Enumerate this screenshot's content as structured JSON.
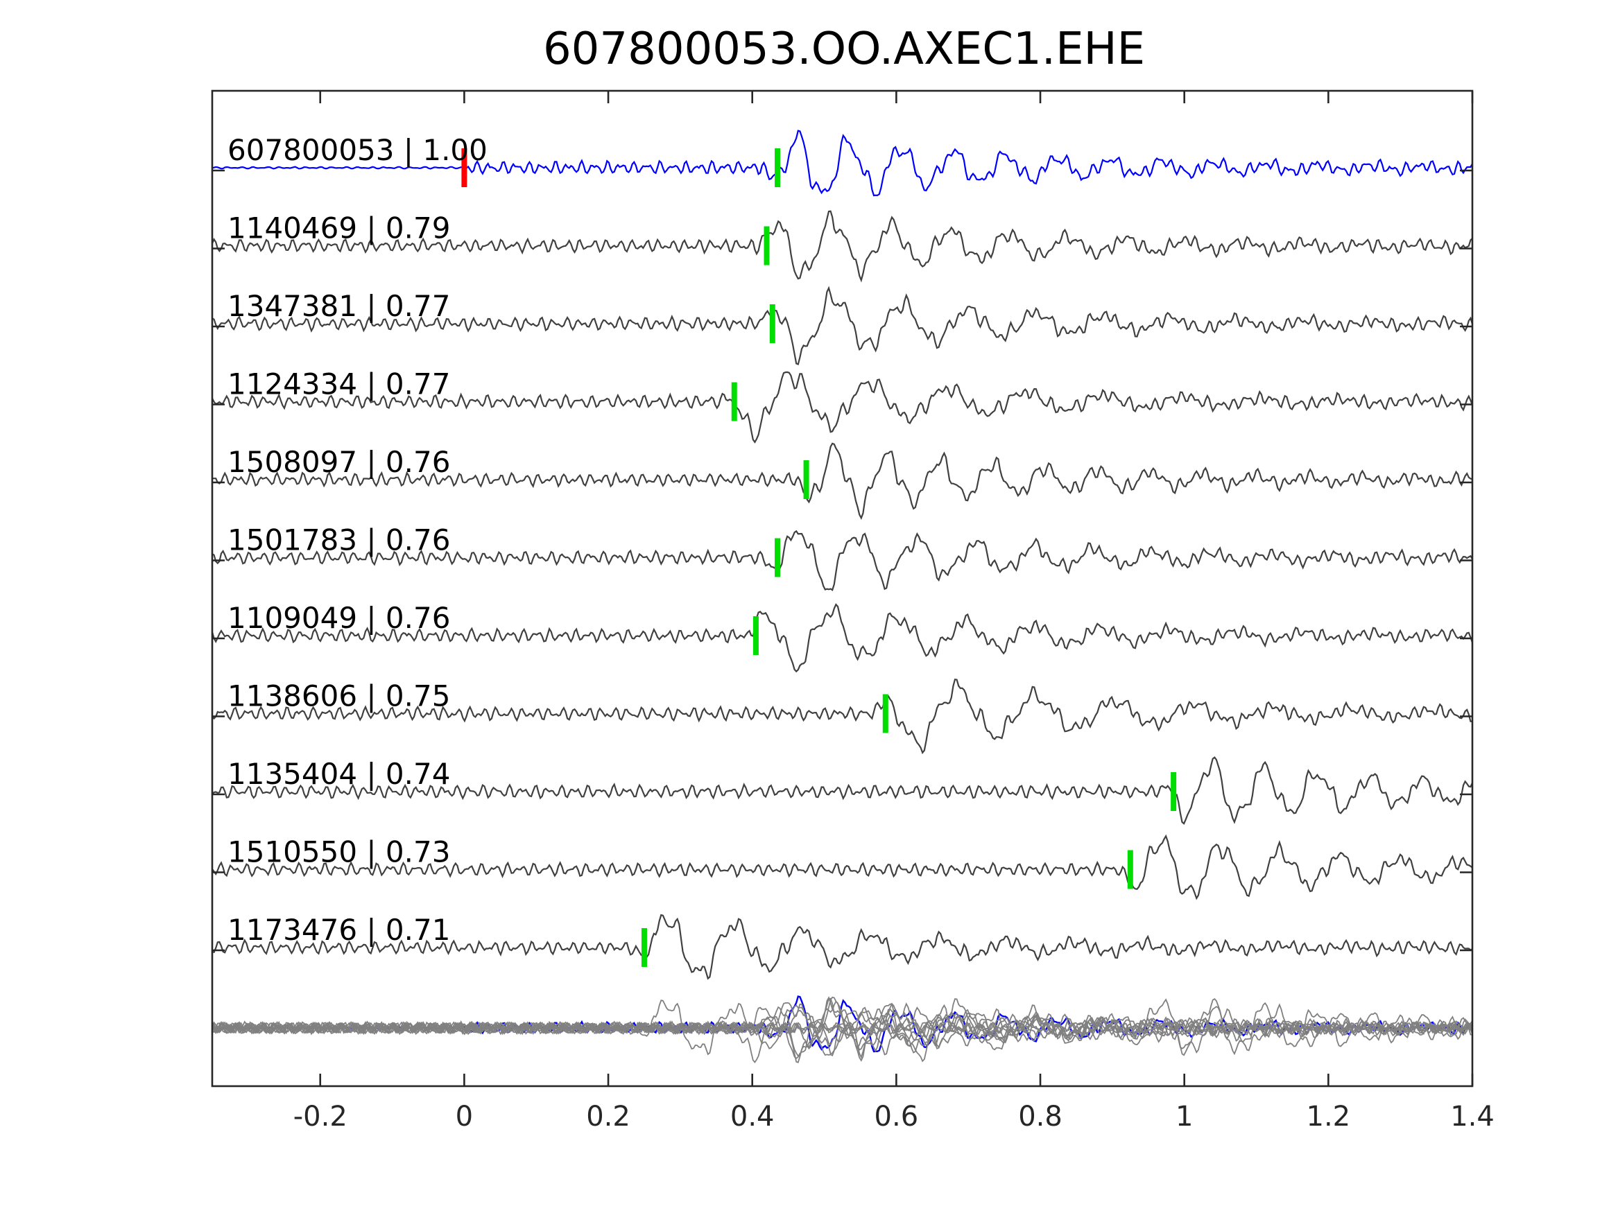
{
  "chart_data": {
    "type": "line",
    "title": "607800053.OO.AXEC1.EHE",
    "xlabel": "",
    "ylabel": "",
    "xlim": [
      -0.35,
      1.4
    ],
    "x_ticks": [
      -0.2,
      0,
      0.2,
      0.4,
      0.6,
      0.8,
      1,
      1.2,
      1.4
    ],
    "x_tick_labels": [
      "-0.2",
      "0",
      "0.2",
      "0.4",
      "0.6",
      "0.8",
      "1",
      "1.2",
      "1.4"
    ],
    "grid": false,
    "colors": {
      "template": "#0000ff",
      "match": "#404040",
      "overlay": "#808080",
      "origin_pick": "#ff0000",
      "phase_pick": "#00dd00"
    },
    "series": [
      {
        "name": "607800053 | 1.00",
        "pick_time": 0.435,
        "origin_time": 0.0,
        "role": "template"
      },
      {
        "name": "1140469 | 0.79",
        "pick_time": 0.42
      },
      {
        "name": "1347381 | 0.77",
        "pick_time": 0.428
      },
      {
        "name": "1124334 | 0.77",
        "pick_time": 0.375
      },
      {
        "name": "1508097 | 0.76",
        "pick_time": 0.475
      },
      {
        "name": "1501783 | 0.76",
        "pick_time": 0.435
      },
      {
        "name": "1109049 | 0.76",
        "pick_time": 0.405
      },
      {
        "name": "1138606 | 0.75",
        "pick_time": 0.585
      },
      {
        "name": "1135404 | 0.74",
        "pick_time": 0.985
      },
      {
        "name": "1510550 | 0.73",
        "pick_time": 0.925
      },
      {
        "name": "1173476 | 0.71",
        "pick_time": 0.25
      }
    ]
  }
}
